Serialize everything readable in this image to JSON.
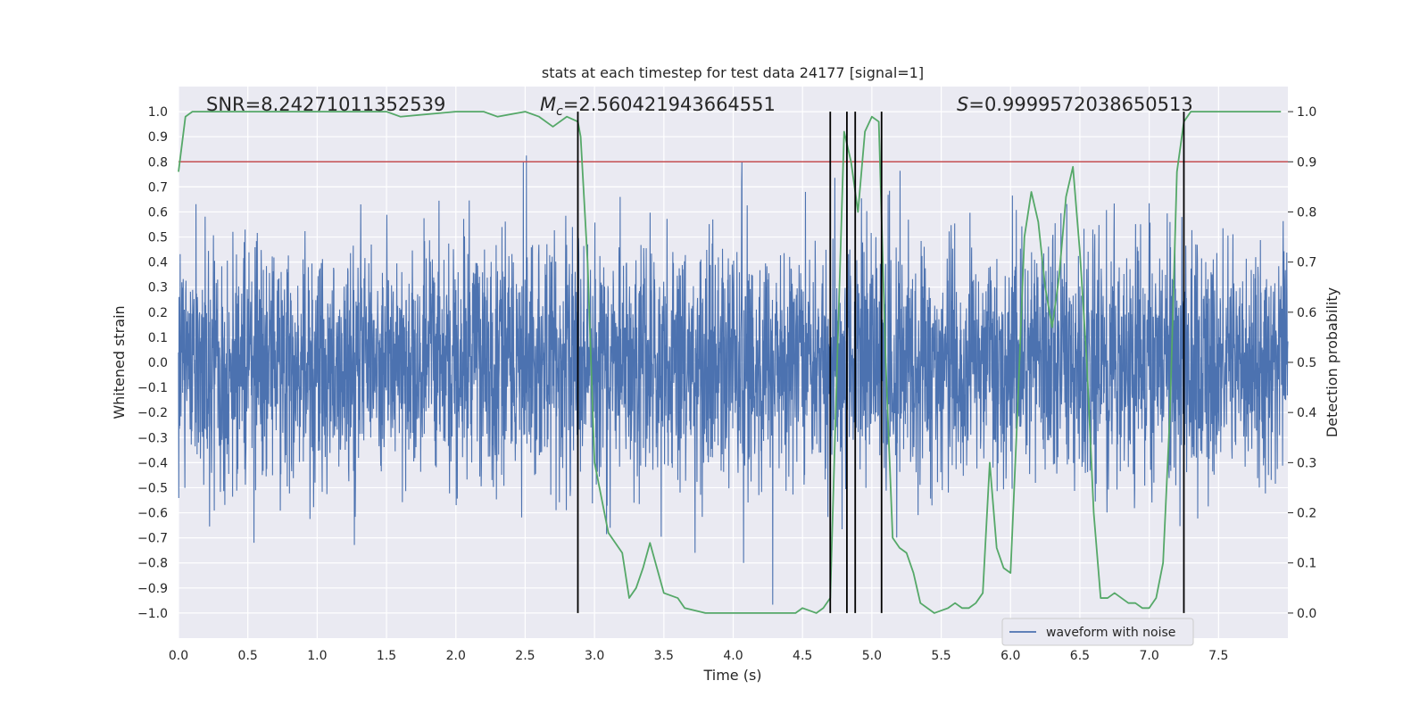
{
  "chart_data": {
    "type": "line",
    "title": "stats at each timestep for test data 24177 [signal=1]",
    "xlabel": "Time (s)",
    "ylabel_left": "Whitened strain",
    "ylabel_right": "Detection probability",
    "xlim": [
      0.0,
      8.0
    ],
    "ylim_left": [
      -1.1,
      1.1
    ],
    "ylim_right": [
      -0.05,
      1.05
    ],
    "x_ticks": [
      "0.0",
      "0.5",
      "1.0",
      "1.5",
      "2.0",
      "2.5",
      "3.0",
      "3.5",
      "4.0",
      "4.5",
      "5.0",
      "5.5",
      "6.0",
      "6.5",
      "7.0",
      "7.5"
    ],
    "y_ticks_left": [
      "1.0",
      "0.9",
      "0.8",
      "0.7",
      "0.6",
      "0.5",
      "0.4",
      "0.3",
      "0.2",
      "0.1",
      "0.0",
      "−0.1",
      "−0.2",
      "−0.3",
      "−0.4",
      "−0.5",
      "−0.6",
      "−0.7",
      "−0.8",
      "−0.9",
      "−1.0"
    ],
    "y_ticks_right": [
      "1.0",
      "0.9",
      "0.8",
      "0.7",
      "0.6",
      "0.5",
      "0.4",
      "0.3",
      "0.2",
      "0.1",
      "0.0"
    ],
    "grid": true,
    "legend": {
      "placement": "lower-right",
      "entries": [
        "waveform with noise"
      ]
    },
    "annotations": {
      "snr": "SNR=8.24271011352539",
      "mc_symbol": "M",
      "mc_sub": "c",
      "mc_value": "=2.560421943664551",
      "s_symbol": "S",
      "s_value": "=0.9999572038650513"
    },
    "threshold": {
      "axis": "right",
      "value": 0.9,
      "color": "#c44e52"
    },
    "vlines_x": [
      2.88,
      4.7,
      4.82,
      4.88,
      5.07,
      7.25
    ],
    "vline_range_right": [
      0.0,
      1.0
    ],
    "series": [
      {
        "name": "waveform with noise",
        "axis": "left",
        "color": "#4c72b0",
        "kind": "noise",
        "t_range": [
          0.0,
          8.0
        ],
        "peak_max": 1.0,
        "peak_min": -0.99,
        "typical_envelope": 0.5
      },
      {
        "axis": "right",
        "color": "#55a868",
        "x": [
          0.0,
          0.05,
          0.1,
          0.5,
          1.0,
          1.5,
          1.6,
          2.0,
          2.2,
          2.3,
          2.5,
          2.6,
          2.7,
          2.8,
          2.88,
          2.9,
          2.95,
          3.0,
          3.1,
          3.2,
          3.25,
          3.3,
          3.35,
          3.4,
          3.5,
          3.6,
          3.65,
          3.8,
          4.0,
          4.2,
          4.35,
          4.45,
          4.5,
          4.6,
          4.65,
          4.7,
          4.75,
          4.8,
          4.85,
          4.9,
          4.95,
          5.0,
          5.05,
          5.1,
          5.15,
          5.2,
          5.25,
          5.3,
          5.35,
          5.45,
          5.55,
          5.6,
          5.65,
          5.7,
          5.75,
          5.8,
          5.85,
          5.9,
          5.95,
          6.0,
          6.05,
          6.1,
          6.15,
          6.2,
          6.25,
          6.3,
          6.35,
          6.4,
          6.45,
          6.5,
          6.55,
          6.6,
          6.65,
          6.7,
          6.75,
          6.8,
          6.85,
          6.9,
          6.95,
          7.0,
          7.05,
          7.1,
          7.15,
          7.2,
          7.25,
          7.3,
          7.35,
          7.4,
          7.45,
          7.5,
          7.6,
          7.7,
          7.8,
          7.9,
          7.95
        ],
        "y": [
          0.88,
          0.99,
          1.0,
          1.0,
          1.0,
          1.0,
          0.99,
          1.0,
          1.0,
          0.99,
          1.0,
          0.99,
          0.97,
          0.99,
          0.98,
          0.95,
          0.7,
          0.3,
          0.16,
          0.12,
          0.03,
          0.05,
          0.09,
          0.14,
          0.04,
          0.03,
          0.01,
          0.0,
          0.0,
          0.0,
          0.0,
          0.0,
          0.01,
          0.0,
          0.01,
          0.03,
          0.5,
          0.96,
          0.9,
          0.8,
          0.96,
          0.99,
          0.98,
          0.5,
          0.15,
          0.13,
          0.12,
          0.08,
          0.02,
          0.0,
          0.01,
          0.02,
          0.01,
          0.01,
          0.02,
          0.04,
          0.3,
          0.13,
          0.09,
          0.08,
          0.4,
          0.75,
          0.84,
          0.78,
          0.65,
          0.57,
          0.67,
          0.83,
          0.89,
          0.72,
          0.5,
          0.2,
          0.03,
          0.03,
          0.04,
          0.03,
          0.02,
          0.02,
          0.01,
          0.01,
          0.03,
          0.1,
          0.4,
          0.88,
          0.98,
          1.0,
          1.0,
          1.0,
          1.0,
          1.0,
          1.0,
          1.0,
          1.0,
          1.0,
          1.0
        ]
      }
    ]
  }
}
